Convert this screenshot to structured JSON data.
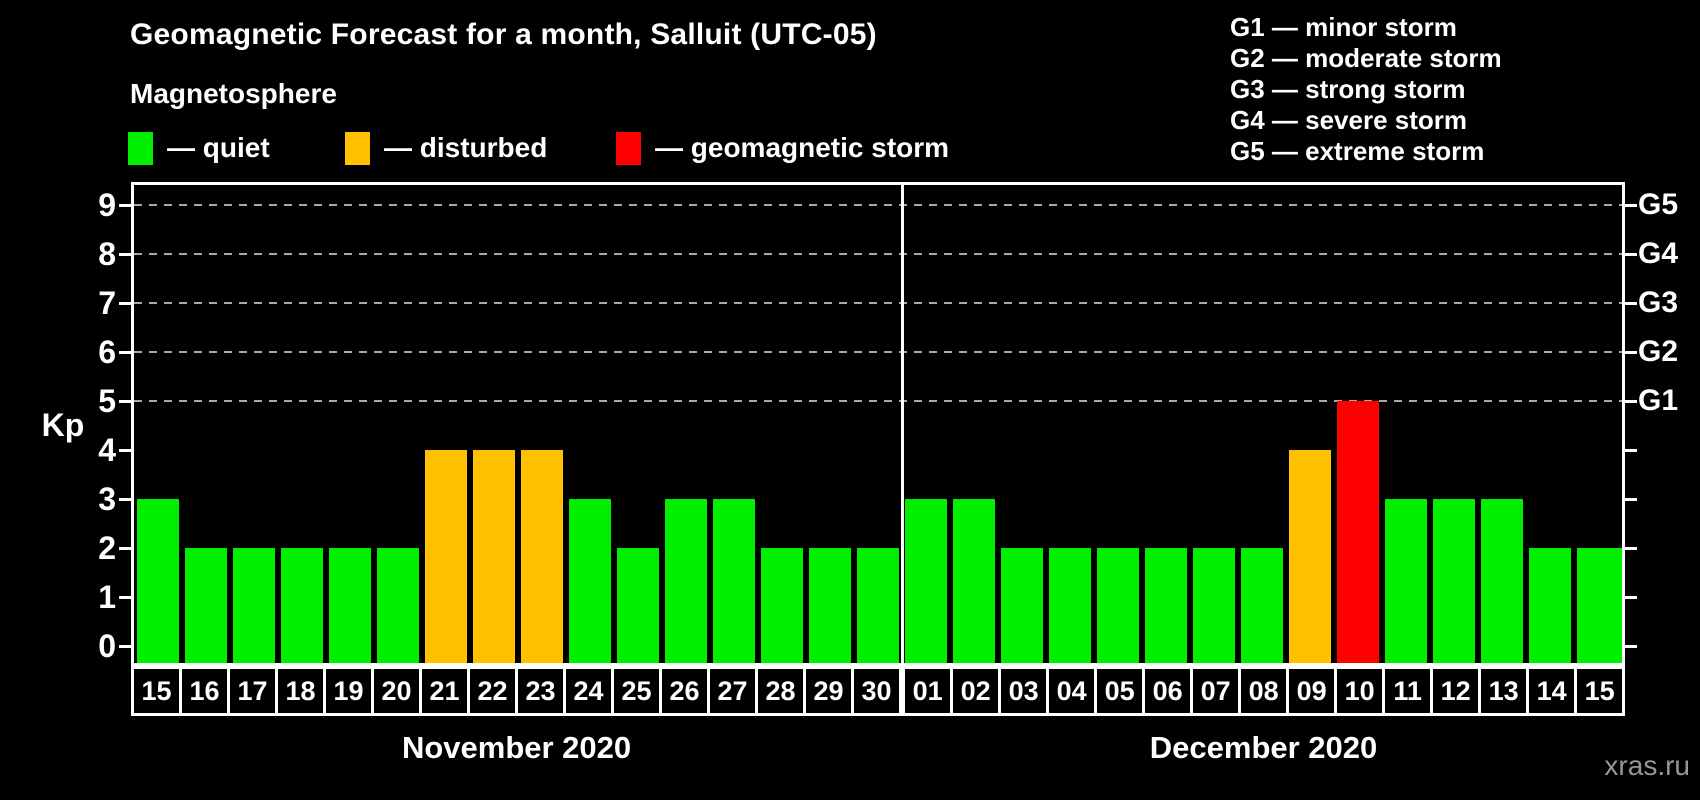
{
  "header": {
    "title": "Geomagnetic Forecast for a month, Salluit (UTC-05)",
    "subtitle": "Magnetosphere",
    "legend": [
      {
        "label": "— quiet",
        "color": "#00ee00"
      },
      {
        "label": "— disturbed",
        "color": "#ffc000"
      },
      {
        "label": "— geomagnetic storm",
        "color": "#ff0000"
      }
    ],
    "g_legend": [
      "G1 — minor storm",
      "G2 — moderate storm",
      "G3 — strong storm",
      "G4 — severe storm",
      "G5 — extreme storm"
    ]
  },
  "footer": {
    "watermark": "xras.ru"
  },
  "chart_data": {
    "type": "bar",
    "title": "Geomagnetic Forecast for a month, Salluit (UTC-05)",
    "ylabel": "Kp",
    "ylim": [
      0,
      9
    ],
    "yticks": [
      0,
      1,
      2,
      3,
      4,
      5,
      6,
      7,
      8,
      9
    ],
    "gridlines_at": [
      5,
      6,
      7,
      8,
      9
    ],
    "grid": "dashed horizontal at storm levels only",
    "right_axis": [
      {
        "kp": 5,
        "label": "G1"
      },
      {
        "kp": 6,
        "label": "G2"
      },
      {
        "kp": 7,
        "label": "G3"
      },
      {
        "kp": 8,
        "label": "G4"
      },
      {
        "kp": 9,
        "label": "G5"
      }
    ],
    "status_colors": {
      "quiet": "#00ee00",
      "disturbed": "#ffc000",
      "storm": "#ff0000"
    },
    "months": [
      {
        "label": "November 2020",
        "days": [
          "15",
          "16",
          "17",
          "18",
          "19",
          "20",
          "21",
          "22",
          "23",
          "24",
          "25",
          "26",
          "27",
          "28",
          "29",
          "30"
        ],
        "kp": [
          3,
          2,
          2,
          2,
          2,
          2,
          4,
          4,
          4,
          3,
          2,
          3,
          3,
          2,
          2,
          2
        ],
        "status": [
          "quiet",
          "quiet",
          "quiet",
          "quiet",
          "quiet",
          "quiet",
          "disturbed",
          "disturbed",
          "disturbed",
          "quiet",
          "quiet",
          "quiet",
          "quiet",
          "quiet",
          "quiet",
          "quiet"
        ]
      },
      {
        "label": "December 2020",
        "days": [
          "01",
          "02",
          "03",
          "04",
          "05",
          "06",
          "07",
          "08",
          "09",
          "10",
          "11",
          "12",
          "13",
          "14",
          "15"
        ],
        "kp": [
          3,
          3,
          2,
          2,
          2,
          2,
          2,
          2,
          4,
          5,
          3,
          3,
          3,
          2,
          2
        ],
        "status": [
          "quiet",
          "quiet",
          "quiet",
          "quiet",
          "quiet",
          "quiet",
          "quiet",
          "quiet",
          "disturbed",
          "storm",
          "quiet",
          "quiet",
          "quiet",
          "quiet",
          "quiet"
        ]
      }
    ]
  }
}
